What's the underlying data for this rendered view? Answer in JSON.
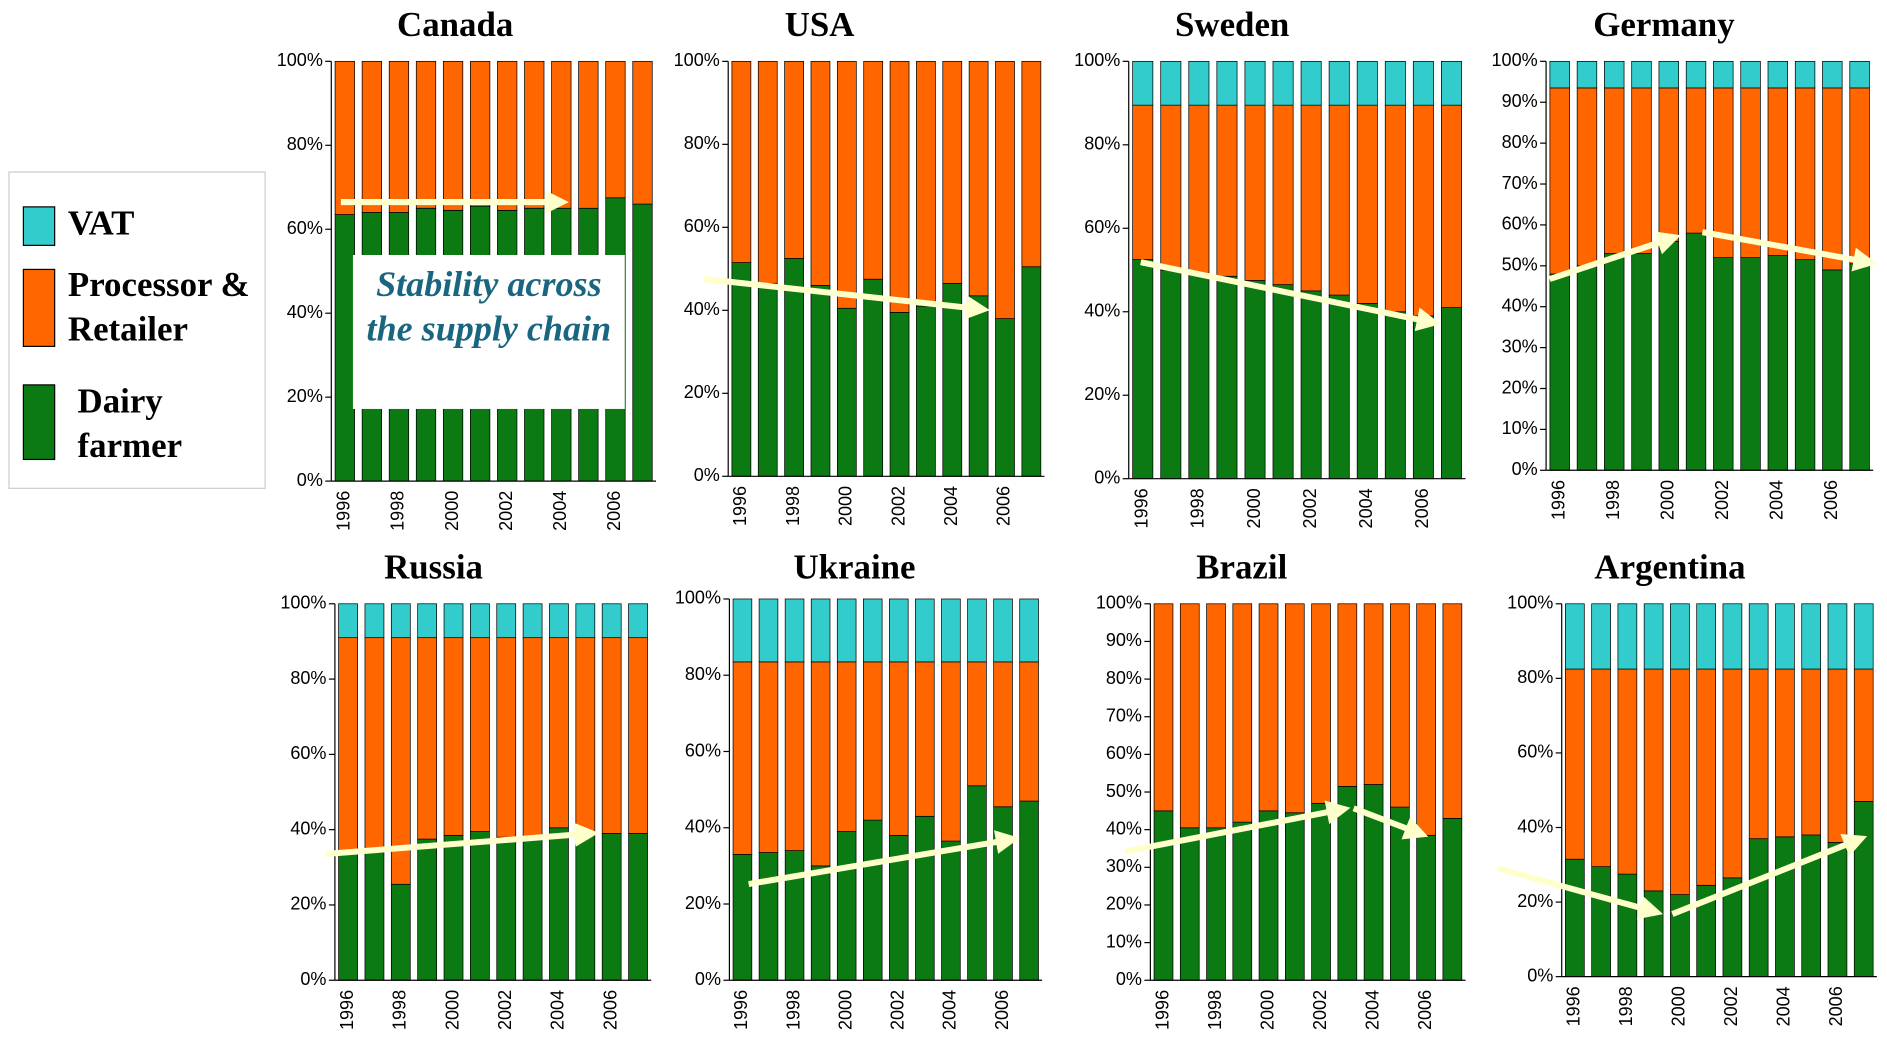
{
  "legend": [
    {
      "name": "VAT",
      "color": "#33cccc"
    },
    {
      "name": "Processor & Retailer",
      "color": "#ff6600"
    },
    {
      "name": "Dairy farmer",
      "color": "#0c7a12"
    }
  ],
  "annotation": "Stability across the supply chain",
  "chart_data": [
    {
      "type": "stacked_bar",
      "title": "Canada",
      "categories": [
        "1996",
        null,
        "1998",
        null,
        "2000",
        null,
        "2002",
        null,
        "2004",
        null,
        "2006",
        null
      ],
      "series": [
        {
          "color": "#0c7a12",
          "values": [
            63.5,
            64,
            64,
            65,
            64.5,
            65.5,
            64.5,
            65,
            65,
            65,
            67.5,
            66
          ]
        },
        {
          "color": "#ff6600",
          "values": [
            36.5,
            36,
            36,
            35,
            35.5,
            34.5,
            35.5,
            35,
            35,
            35,
            32.5,
            34
          ]
        }
      ],
      "ylim": [
        0,
        100
      ],
      "yticks": [
        {
          "value": 0,
          "label": "0%"
        },
        {
          "value": 20,
          "label": "20%"
        },
        {
          "value": 40,
          "label": "40%"
        },
        {
          "value": 60,
          "label": "60%"
        },
        {
          "value": 80,
          "label": "80%"
        },
        {
          "value": 100,
          "label": "100%"
        }
      ]
    },
    {
      "type": "stacked_bar",
      "title": "USA",
      "categories": [
        "1996",
        null,
        "1998",
        null,
        "2000",
        null,
        "2002",
        null,
        "2004",
        null,
        "2006",
        null
      ],
      "series": [
        {
          "color": "#0c7a12",
          "values": [
            51.5,
            46.5,
            52.5,
            46,
            40.5,
            47.5,
            39.5,
            41,
            46.5,
            43.5,
            38,
            50.5
          ]
        },
        {
          "color": "#ff6600",
          "values": [
            48.5,
            53.5,
            47.5,
            54,
            59.5,
            52.5,
            60.5,
            59,
            53.5,
            56.5,
            62,
            49.5
          ]
        }
      ],
      "ylim": [
        0,
        100
      ],
      "yticks": [
        {
          "value": 0,
          "label": "0%"
        },
        {
          "value": 20,
          "label": "20%"
        },
        {
          "value": 40,
          "label": "40%"
        },
        {
          "value": 60,
          "label": "60%"
        },
        {
          "value": 80,
          "label": "80%"
        },
        {
          "value": 100,
          "label": "100%"
        }
      ]
    },
    {
      "type": "stacked_bar",
      "title": "Sweden",
      "categories": [
        "1996",
        null,
        "1998",
        null,
        "2000",
        null,
        "2002",
        null,
        "2004",
        null,
        "2006",
        null
      ],
      "series": [
        {
          "color": "#0c7a12",
          "values": [
            52.5,
            50,
            49,
            48.5,
            47.5,
            46.5,
            45,
            44,
            42,
            40,
            39,
            41
          ]
        },
        {
          "color": "#ff6600",
          "values": [
            37,
            39.5,
            40.5,
            41,
            42,
            43,
            44.5,
            45.5,
            47.5,
            49.5,
            50.5,
            48.5
          ]
        },
        {
          "color": "#33cccc",
          "values": [
            10.5,
            10.5,
            10.5,
            10.5,
            10.5,
            10.5,
            10.5,
            10.5,
            10.5,
            10.5,
            10.5,
            10.5
          ]
        }
      ],
      "ylim": [
        0,
        100
      ],
      "yticks": [
        {
          "value": 0,
          "label": "0%"
        },
        {
          "value": 20,
          "label": "20%"
        },
        {
          "value": 40,
          "label": "40%"
        },
        {
          "value": 60,
          "label": "60%"
        },
        {
          "value": 80,
          "label": "80%"
        },
        {
          "value": 100,
          "label": "100%"
        }
      ]
    },
    {
      "type": "stacked_bar",
      "title": "Germany",
      "categories": [
        "1996",
        null,
        "1998",
        null,
        "2000",
        null,
        "2002",
        null,
        "2004",
        null,
        "2006",
        null
      ],
      "series": [
        {
          "color": "#0c7a12",
          "values": [
            48,
            50,
            53,
            53,
            56,
            58,
            52,
            52,
            52.5,
            51.5,
            49,
            50.5
          ]
        },
        {
          "color": "#ff6600",
          "values": [
            45.5,
            43.5,
            40.5,
            40.5,
            37.5,
            35.5,
            41.5,
            41.5,
            41,
            42,
            44.5,
            43
          ]
        },
        {
          "color": "#33cccc",
          "values": [
            6.5,
            6.5,
            6.5,
            6.5,
            6.5,
            6.5,
            6.5,
            6.5,
            6.5,
            6.5,
            6.5,
            6.5
          ]
        }
      ],
      "ylim": [
        0,
        100
      ],
      "yticks": [
        {
          "value": 0,
          "label": "0%"
        },
        {
          "value": 10,
          "label": "10%"
        },
        {
          "value": 20,
          "label": "20%"
        },
        {
          "value": 30,
          "label": "30%"
        },
        {
          "value": 40,
          "label": "40%"
        },
        {
          "value": 50,
          "label": "50%"
        },
        {
          "value": 60,
          "label": "60%"
        },
        {
          "value": 70,
          "label": "70%"
        },
        {
          "value": 80,
          "label": "80%"
        },
        {
          "value": 90,
          "label": "90%"
        },
        {
          "value": 100,
          "label": "100%"
        }
      ]
    },
    {
      "type": "stacked_bar",
      "title": "Russia",
      "categories": [
        "1996",
        null,
        "1998",
        null,
        "2000",
        null,
        "2002",
        null,
        "2004",
        null,
        "2006",
        null
      ],
      "series": [
        {
          "color": "#0c7a12",
          "values": [
            34,
            34.5,
            25.5,
            37.5,
            38.5,
            39.5,
            38,
            38,
            40.5,
            39,
            39,
            39
          ]
        },
        {
          "color": "#ff6600",
          "values": [
            57,
            56.5,
            65.5,
            53.5,
            52.5,
            51.5,
            53,
            53,
            50.5,
            52,
            52,
            52
          ]
        },
        {
          "color": "#33cccc",
          "values": [
            9,
            9,
            9,
            9,
            9,
            9,
            9,
            9,
            9,
            9,
            9,
            9
          ]
        }
      ],
      "ylim": [
        0,
        100
      ],
      "yticks": [
        {
          "value": 0,
          "label": "0%"
        },
        {
          "value": 20,
          "label": "20%"
        },
        {
          "value": 40,
          "label": "40%"
        },
        {
          "value": 60,
          "label": "60%"
        },
        {
          "value": 80,
          "label": "80%"
        },
        {
          "value": 100,
          "label": "100%"
        }
      ]
    },
    {
      "type": "stacked_bar",
      "title": "Ukraine",
      "categories": [
        "1996",
        null,
        "1998",
        null,
        "2000",
        null,
        "2002",
        null,
        "2004",
        null,
        "2006",
        null
      ],
      "series": [
        {
          "color": "#0c7a12",
          "values": [
            33,
            33.5,
            34,
            30,
            39,
            42,
            38,
            43,
            36.5,
            51,
            45.5,
            47
          ]
        },
        {
          "color": "#ff6600",
          "values": [
            50.5,
            50,
            49.5,
            53.5,
            44.5,
            41.5,
            45.5,
            40.5,
            47,
            32.5,
            38,
            36.5
          ]
        },
        {
          "color": "#33cccc",
          "values": [
            16.5,
            16.5,
            16.5,
            16.5,
            16.5,
            16.5,
            16.5,
            16.5,
            16.5,
            16.5,
            16.5,
            16.5
          ]
        }
      ],
      "ylim": [
        0,
        100
      ],
      "yticks": [
        {
          "value": 0,
          "label": "0%"
        },
        {
          "value": 20,
          "label": "20%"
        },
        {
          "value": 40,
          "label": "40%"
        },
        {
          "value": 60,
          "label": "60%"
        },
        {
          "value": 80,
          "label": "80%"
        },
        {
          "value": 100,
          "label": "100%"
        }
      ]
    },
    {
      "type": "stacked_bar",
      "title": "Brazil",
      "categories": [
        "1996",
        null,
        "1998",
        null,
        "2000",
        null,
        "2002",
        null,
        "2004",
        null,
        "2006",
        null
      ],
      "series": [
        {
          "color": "#0c7a12",
          "values": [
            45,
            40.5,
            40.5,
            42,
            45,
            44.5,
            47,
            51.5,
            52,
            46,
            38.5,
            43
          ]
        },
        {
          "color": "#ff6600",
          "values": [
            55,
            59.5,
            59.5,
            58,
            55,
            55.5,
            53,
            48.5,
            48,
            54,
            61.5,
            57
          ]
        }
      ],
      "ylim": [
        0,
        100
      ],
      "yticks": [
        {
          "value": 0,
          "label": "0%"
        },
        {
          "value": 10,
          "label": "10%"
        },
        {
          "value": 20,
          "label": "20%"
        },
        {
          "value": 30,
          "label": "30%"
        },
        {
          "value": 40,
          "label": "40%"
        },
        {
          "value": 50,
          "label": "50%"
        },
        {
          "value": 60,
          "label": "60%"
        },
        {
          "value": 70,
          "label": "70%"
        },
        {
          "value": 80,
          "label": "80%"
        },
        {
          "value": 90,
          "label": "90%"
        },
        {
          "value": 100,
          "label": "100%"
        }
      ]
    },
    {
      "type": "stacked_bar",
      "title": "Argentina",
      "categories": [
        "1996",
        null,
        "1998",
        null,
        "2000",
        null,
        "2002",
        null,
        "2004",
        null,
        "2006",
        null
      ],
      "series": [
        {
          "color": "#0c7a12",
          "values": [
            31.5,
            29.5,
            27.5,
            23,
            22,
            24.5,
            26.5,
            37,
            37.5,
            38,
            36,
            47
          ]
        },
        {
          "color": "#ff6600",
          "values": [
            51,
            53,
            55,
            59.5,
            60.5,
            58,
            56,
            45.5,
            45,
            44.5,
            46.5,
            35.5
          ]
        },
        {
          "color": "#33cccc",
          "values": [
            17.5,
            17.5,
            17.5,
            17.5,
            17.5,
            17.5,
            17.5,
            17.5,
            17.5,
            17.5,
            17.5,
            17.5
          ]
        }
      ],
      "ylim": [
        0,
        100
      ],
      "yticks": [
        {
          "value": 0,
          "label": "0%"
        },
        {
          "value": 20,
          "label": "20%"
        },
        {
          "value": 40,
          "label": "40%"
        },
        {
          "value": 60,
          "label": "60%"
        },
        {
          "value": 80,
          "label": "80%"
        },
        {
          "value": 100,
          "label": "100%"
        }
      ]
    }
  ]
}
